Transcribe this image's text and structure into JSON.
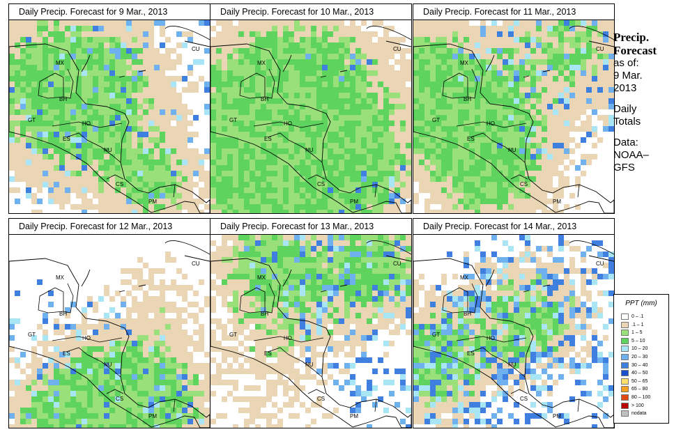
{
  "panels": [
    {
      "title": "Daily Precip. Forecast for  9 Mar., 2013",
      "seed": 11,
      "g": 0.2,
      "t": 0.42,
      "h": 0.04
    },
    {
      "title": "Daily Precip. Forecast for  10 Mar., 2013",
      "seed": 23,
      "g": 0.18,
      "t": 0.34,
      "h": 0.04
    },
    {
      "title": "Daily Precip. Forecast for  11 Mar., 2013",
      "seed": 37,
      "g": 0.22,
      "t": 0.45,
      "h": 0.05
    },
    {
      "title": "Daily Precip. Forecast for  12 Mar., 2013",
      "seed": 41,
      "g": 0.27,
      "t": 0.36,
      "h": 0.06
    },
    {
      "title": "Daily Precip. Forecast for  13 Mar., 2013",
      "seed": 53,
      "g": 0.36,
      "t": 0.4,
      "h": 0.1
    },
    {
      "title": "Daily Precip. Forecast for  14 Mar., 2013",
      "seed": 67,
      "g": 0.32,
      "t": 0.38,
      "h": 0.13
    }
  ],
  "map_labels": {
    "mx": "MX",
    "cu": "CU",
    "bh": "BH",
    "gt": "GT",
    "ho": "HO",
    "es": "ES",
    "nu": "NU",
    "cs": "CS",
    "pm": "PM"
  },
  "sidebar": {
    "line1": "Precip.",
    "line2": "Forecast",
    "line3": "as of:",
    "line4": "9 Mar.",
    "line5": "2013",
    "line6": "Daily",
    "line7": "Totals",
    "line8": "Data:",
    "line9": "NOAA–",
    "line10": "GFS"
  },
  "legend": {
    "title": "PPT (mm)",
    "items": [
      {
        "label": "0 – .1",
        "color": "#ffffff"
      },
      {
        "label": ".1 – 1",
        "color": "#ead6b4"
      },
      {
        "label": "1 – 5",
        "color": "#99e07a"
      },
      {
        "label": "5 – 10",
        "color": "#5ed35e"
      },
      {
        "label": "10 – 20",
        "color": "#a8e6f5"
      },
      {
        "label": "20 – 30",
        "color": "#6fb0ee"
      },
      {
        "label": "30 – 40",
        "color": "#3f7fe0"
      },
      {
        "label": "40 – 50",
        "color": "#1a4fd0"
      },
      {
        "label": "50 – 65",
        "color": "#fde069"
      },
      {
        "label": "65 – 80",
        "color": "#f6a020"
      },
      {
        "label": "80 – 100",
        "color": "#e24a14"
      },
      {
        "label": "> 100",
        "color": "#b80000"
      },
      {
        "label": "nodata",
        "color": "#c0c0c0"
      }
    ]
  }
}
